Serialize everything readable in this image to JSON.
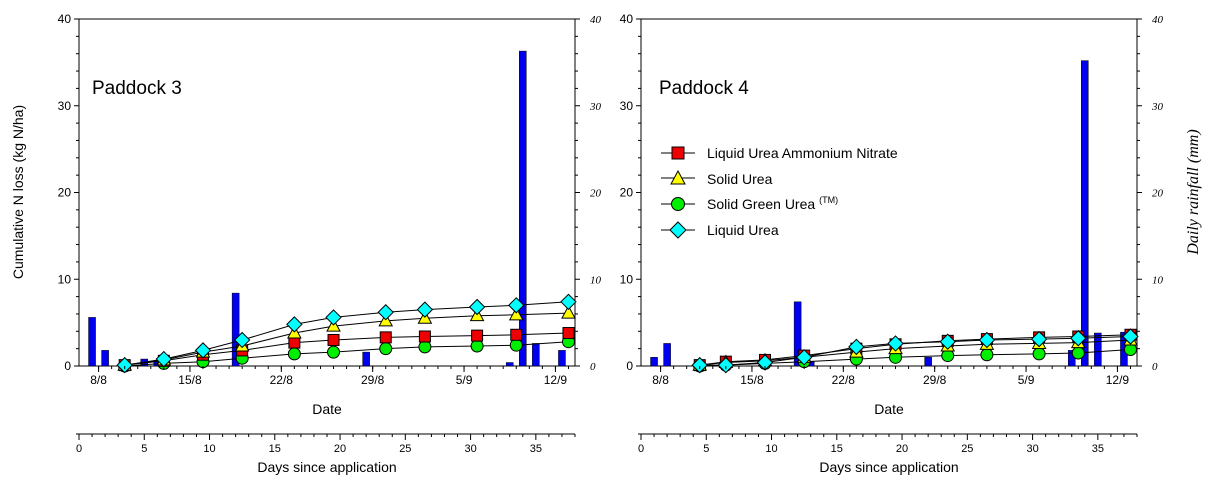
{
  "colors": {
    "rain": "#0000ee",
    "uan": "#ee0000",
    "solid_urea": "#ffff00",
    "green_urea": "#00ee00",
    "liquid_urea": "#00ffff"
  },
  "shared": {
    "ylabel_left": "Cumulative N loss (kg N/ha)",
    "ylabel_right": "Daily rainfall (mm)",
    "xlabel_date": "Date",
    "xlabel_days": "Days since application",
    "date_ticks": [
      "8/8",
      "15/8",
      "22/8",
      "29/8",
      "5/9",
      "12/9"
    ],
    "y_ticks": [
      "0",
      "10",
      "20",
      "30",
      "40"
    ],
    "days_ticks": [
      "0",
      "5",
      "10",
      "15",
      "20",
      "25",
      "30",
      "35"
    ],
    "legend": {
      "uan": "Liquid Urea Ammonium Nitrate",
      "solid_urea": "Solid Urea",
      "green_urea": "Solid Green Urea",
      "green_urea_sup": "(TM)",
      "liquid_urea": "Liquid Urea"
    }
  },
  "chart_data": [
    {
      "type": "line",
      "title": "Paddock 3",
      "xlabel": "Date",
      "ylabel": "Cumulative N loss (kg N/ha)",
      "y2label": "Daily rainfall (mm)",
      "x_unit": "days since application",
      "xlim": [
        0,
        38
      ],
      "ylim": [
        0,
        40
      ],
      "y2lim": [
        0,
        40
      ],
      "x": [
        3.5,
        6.5,
        9.5,
        12.5,
        16.5,
        19.5,
        23.5,
        26.5,
        30.5,
        33.5,
        37.5
      ],
      "series": [
        {
          "name": "Liquid Urea Ammonium Nitrate",
          "marker": "square",
          "values": [
            0.1,
            0.6,
            1.3,
            1.8,
            2.7,
            3.0,
            3.3,
            3.4,
            3.5,
            3.6,
            3.8
          ]
        },
        {
          "name": "Solid Urea",
          "marker": "triangle",
          "values": [
            0.1,
            0.7,
            1.6,
            2.3,
            3.8,
            4.6,
            5.2,
            5.5,
            5.8,
            5.9,
            6.1
          ]
        },
        {
          "name": "Solid Green Urea (TM)",
          "marker": "circle",
          "values": [
            0.0,
            0.3,
            0.5,
            0.9,
            1.4,
            1.6,
            2.0,
            2.2,
            2.3,
            2.4,
            2.8
          ]
        },
        {
          "name": "Liquid Urea",
          "marker": "diamond",
          "values": [
            0.1,
            0.8,
            1.8,
            3.0,
            4.8,
            5.6,
            6.2,
            6.5,
            6.8,
            7.0,
            7.4
          ]
        }
      ],
      "rainfall": {
        "day": [
          1,
          2,
          5,
          6,
          12,
          22,
          33,
          34,
          35,
          37
        ],
        "mm": [
          5.6,
          1.8,
          0.8,
          0.5,
          8.4,
          1.6,
          0.4,
          36.3,
          2.6,
          1.8
        ]
      },
      "grid": false
    },
    {
      "type": "line",
      "title": "Paddock 4",
      "xlabel": "Date",
      "ylabel": "Cumulative N loss (kg N/ha)",
      "y2label": "Daily rainfall (mm)",
      "x_unit": "days since application",
      "xlim": [
        0,
        38
      ],
      "ylim": [
        0,
        40
      ],
      "y2lim": [
        0,
        40
      ],
      "x": [
        4.5,
        6.5,
        9.5,
        12.5,
        16.5,
        19.5,
        23.5,
        26.5,
        30.5,
        33.5,
        37.5
      ],
      "series": [
        {
          "name": "Liquid Urea Ammonium Nitrate",
          "marker": "square",
          "values": [
            0.1,
            0.5,
            0.7,
            1.2,
            2.0,
            2.5,
            2.9,
            3.1,
            3.3,
            3.4,
            3.6
          ]
        },
        {
          "name": "Solid Urea",
          "marker": "triangle",
          "values": [
            0.1,
            0.4,
            0.6,
            1.0,
            1.6,
            2.0,
            2.3,
            2.5,
            2.6,
            2.7,
            3.0
          ]
        },
        {
          "name": "Solid Green Urea (TM)",
          "marker": "circle",
          "values": [
            0.0,
            0.1,
            0.3,
            0.5,
            0.8,
            1.0,
            1.2,
            1.3,
            1.4,
            1.5,
            1.9
          ]
        },
        {
          "name": "Liquid Urea",
          "marker": "diamond",
          "values": [
            0.1,
            0.1,
            0.4,
            1.0,
            2.2,
            2.6,
            2.8,
            3.0,
            3.1,
            3.2,
            3.4
          ]
        }
      ],
      "rainfall": {
        "day": [
          1,
          2,
          12,
          13,
          22,
          33,
          34,
          35,
          37
        ],
        "mm": [
          1.0,
          2.6,
          7.4,
          0.5,
          1.0,
          1.8,
          35.2,
          3.8,
          3.9
        ]
      },
      "legend_position": "center-left",
      "grid": false
    }
  ]
}
